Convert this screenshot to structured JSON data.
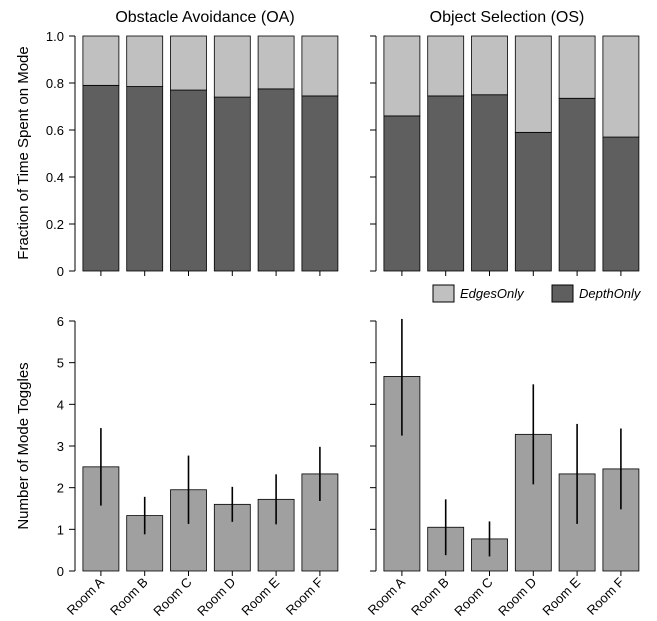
{
  "colors": {
    "edges": "#c0c0c0",
    "depth": "#5f5f5f",
    "toggle_bar": "#a0a0a0",
    "axis": "#000000"
  },
  "chart_data": [
    {
      "type": "bar",
      "stacked": true,
      "title": "Obstacle Avoidance (OA)",
      "ylabel": "Fraction of Time Spent on Mode",
      "ylim": [
        0,
        1
      ],
      "yticks": [
        "0",
        "0.2",
        "0.4",
        "0.6",
        "0.8",
        "1.0"
      ],
      "categories": [
        "Room A",
        "Room B",
        "Room C",
        "Room D",
        "Room E",
        "Room F"
      ],
      "series": [
        {
          "name": "DepthOnly",
          "values": [
            0.79,
            0.785,
            0.77,
            0.74,
            0.775,
            0.745
          ]
        },
        {
          "name": "EdgesOnly",
          "values": [
            0.21,
            0.215,
            0.23,
            0.26,
            0.225,
            0.255
          ]
        }
      ]
    },
    {
      "type": "bar",
      "stacked": true,
      "title": "Object Selection (OS)",
      "ylim": [
        0,
        1
      ],
      "categories": [
        "Room A",
        "Room B",
        "Room C",
        "Room D",
        "Room E",
        "Room F"
      ],
      "series": [
        {
          "name": "DepthOnly",
          "values": [
            0.66,
            0.745,
            0.75,
            0.59,
            0.735,
            0.57
          ]
        },
        {
          "name": "EdgesOnly",
          "values": [
            0.34,
            0.255,
            0.25,
            0.41,
            0.265,
            0.43
          ]
        }
      ]
    },
    {
      "type": "bar",
      "ylabel": "Number of Mode Toggles",
      "ylim": [
        0,
        6
      ],
      "yticks": [
        "0",
        "1",
        "2",
        "3",
        "4",
        "5",
        "6"
      ],
      "categories": [
        "Room A",
        "Room B",
        "Room C",
        "Room D",
        "Room E",
        "Room F"
      ],
      "values": [
        2.5,
        1.33,
        1.95,
        1.6,
        1.72,
        2.33
      ],
      "error": [
        0.93,
        0.45,
        0.82,
        0.42,
        0.6,
        0.65
      ]
    },
    {
      "type": "bar",
      "ylim": [
        0,
        6
      ],
      "categories": [
        "Room A",
        "Room B",
        "Room C",
        "Room D",
        "Room E",
        "Room F"
      ],
      "values": [
        4.67,
        1.05,
        0.77,
        3.28,
        2.33,
        2.45
      ],
      "error": [
        1.42,
        0.67,
        0.42,
        1.2,
        1.2,
        0.97
      ]
    }
  ],
  "legend": {
    "items": [
      {
        "label": "EdgesOnly",
        "color_key": "edges"
      },
      {
        "label": "DepthOnly",
        "color_key": "depth"
      }
    ]
  }
}
